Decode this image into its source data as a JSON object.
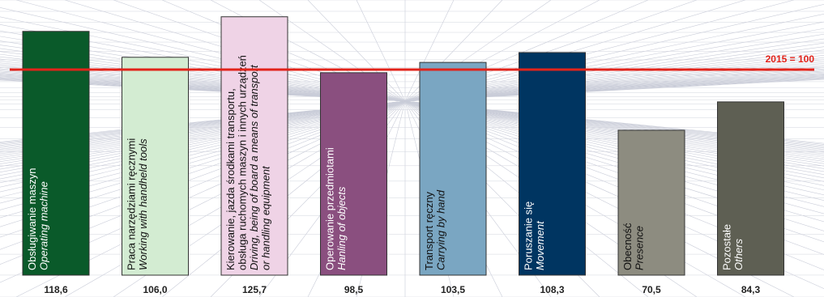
{
  "chart_data": {
    "type": "bar",
    "categories": [
      {
        "pl": "Obsługiwanie maszyn",
        "en": "Operating machine"
      },
      {
        "pl": "Praca narzędziami ręcznymi",
        "en": "Working with handheld tools"
      },
      {
        "pl": [
          "Kierowanie, jazda środkami transportu,",
          "obsługa ruchomych maszyn i innych urządzeń"
        ],
        "en": [
          "Driving, being of board a means of transport",
          "or handling equipment"
        ]
      },
      {
        "pl": "Operowanie przedmiotami",
        "en": "Hanling of objects"
      },
      {
        "pl": "Transport ręczny",
        "en": "Carrying by hand"
      },
      {
        "pl": "Poruszanie się",
        "en": "Movement"
      },
      {
        "pl": "Obecność",
        "en": "Presence"
      },
      {
        "pl": "Pozostałe",
        "en": "Others"
      }
    ],
    "values": [
      118.6,
      106.0,
      125.7,
      98.5,
      103.5,
      108.3,
      70.5,
      84.3
    ],
    "value_labels": [
      "118,6",
      "106,0",
      "125,7",
      "98,5",
      "103,5",
      "108,3",
      "70,5",
      "84,3"
    ],
    "bar_colors": [
      "#0a5a2a",
      "#d3ecd2",
      "#efd3e6",
      "#8a4f7f",
      "#7aa6c2",
      "#003561",
      "#8d8c80",
      "#5e5f53"
    ],
    "label_colors": [
      "#ffffff",
      "#111111",
      "#111111",
      "#ffffff",
      "#111111",
      "#ffffff",
      "#111111",
      "#ffffff"
    ],
    "reference_line": {
      "value": 100,
      "label": "2015 = 100",
      "color": "#e2231a"
    },
    "ylim": [
      0,
      127
    ],
    "title": "",
    "xlabel": "",
    "ylabel": ""
  }
}
